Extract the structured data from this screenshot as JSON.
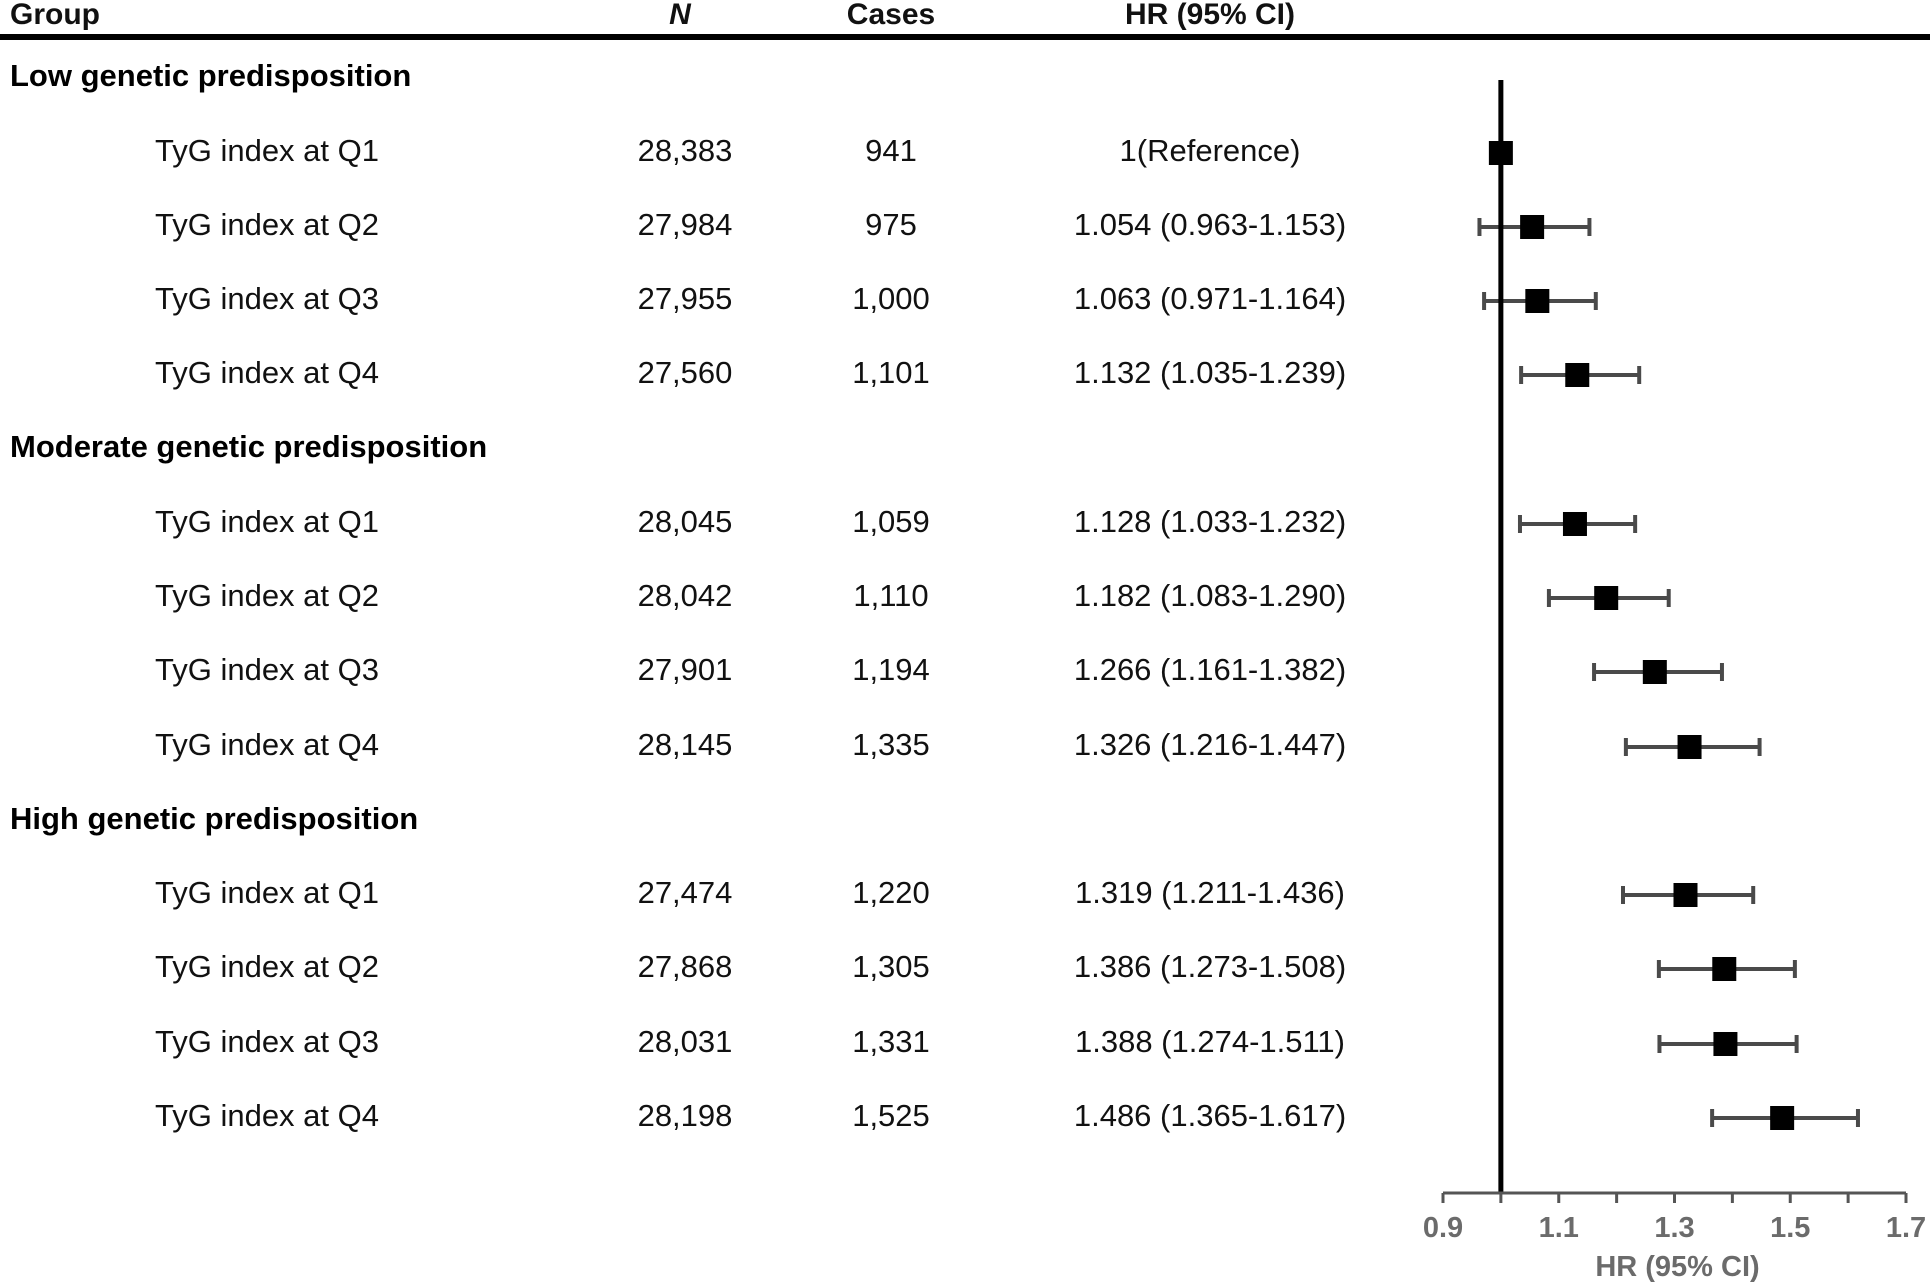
{
  "headers": {
    "group": "Group",
    "n": "N",
    "cases": "Cases",
    "hr": "HR (95% CI)"
  },
  "groups": [
    {
      "title": "Low genetic predisposition",
      "rows": [
        {
          "label": "TyG index at Q1",
          "n": "28,383",
          "cases": "941",
          "hr_text": "1(Reference)"
        },
        {
          "label": "TyG index at Q2",
          "n": "27,984",
          "cases": "975",
          "hr_text": "1.054 (0.963-1.153)"
        },
        {
          "label": "TyG index at Q3",
          "n": "27,955",
          "cases": "1,000",
          "hr_text": "1.063 (0.971-1.164)"
        },
        {
          "label": "TyG index at Q4",
          "n": "27,560",
          "cases": "1,101",
          "hr_text": "1.132 (1.035-1.239)"
        }
      ]
    },
    {
      "title": "Moderate genetic predisposition",
      "rows": [
        {
          "label": "TyG index at Q1",
          "n": "28,045",
          "cases": "1,059",
          "hr_text": "1.128 (1.033-1.232)"
        },
        {
          "label": "TyG index at Q2",
          "n": "28,042",
          "cases": "1,110",
          "hr_text": "1.182 (1.083-1.290)"
        },
        {
          "label": "TyG index at Q3",
          "n": "27,901",
          "cases": "1,194",
          "hr_text": "1.266 (1.161-1.382)"
        },
        {
          "label": "TyG index at Q4",
          "n": "28,145",
          "cases": "1,335",
          "hr_text": "1.326 (1.216-1.447)"
        }
      ]
    },
    {
      "title": "High genetic predisposition",
      "rows": [
        {
          "label": "TyG index at Q1",
          "n": "27,474",
          "cases": "1,220",
          "hr_text": "1.319 (1.211-1.436)"
        },
        {
          "label": "TyG index at Q2",
          "n": "27,868",
          "cases": "1,305",
          "hr_text": "1.386 (1.273-1.508)"
        },
        {
          "label": "TyG index at Q3",
          "n": "28,031",
          "cases": "1,331",
          "hr_text": "1.388 (1.274-1.511)"
        },
        {
          "label": "TyG index at Q4",
          "n": "28,198",
          "cases": "1,525",
          "hr_text": "1.486 (1.365-1.617)"
        }
      ]
    }
  ],
  "chart_data": {
    "type": "forest",
    "xlabel": "HR (95% CI)",
    "xlim": [
      0.9,
      1.7
    ],
    "xticks": [
      0.9,
      1.1,
      1.3,
      1.5,
      1.7
    ],
    "tick_labels": [
      "0.9",
      "1.1",
      "1.3",
      "1.5",
      "1.7"
    ],
    "reference_line": 1.0,
    "series": [
      {
        "name": "Low genetic predisposition",
        "points": [
          {
            "label": "TyG index at Q1",
            "hr": 1.0,
            "lower": 1.0,
            "upper": 1.0
          },
          {
            "label": "TyG index at Q2",
            "hr": 1.054,
            "lower": 0.963,
            "upper": 1.153
          },
          {
            "label": "TyG index at Q3",
            "hr": 1.063,
            "lower": 0.971,
            "upper": 1.164
          },
          {
            "label": "TyG index at Q4",
            "hr": 1.132,
            "lower": 1.035,
            "upper": 1.239
          }
        ]
      },
      {
        "name": "Moderate genetic predisposition",
        "points": [
          {
            "label": "TyG index at Q1",
            "hr": 1.128,
            "lower": 1.033,
            "upper": 1.232
          },
          {
            "label": "TyG index at Q2",
            "hr": 1.182,
            "lower": 1.083,
            "upper": 1.29
          },
          {
            "label": "TyG index at Q3",
            "hr": 1.266,
            "lower": 1.161,
            "upper": 1.382
          },
          {
            "label": "TyG index at Q4",
            "hr": 1.326,
            "lower": 1.216,
            "upper": 1.447
          }
        ]
      },
      {
        "name": "High genetic predisposition",
        "points": [
          {
            "label": "TyG index at Q1",
            "hr": 1.319,
            "lower": 1.211,
            "upper": 1.436
          },
          {
            "label": "TyG index at Q2",
            "hr": 1.386,
            "lower": 1.273,
            "upper": 1.508
          },
          {
            "label": "TyG index at Q3",
            "hr": 1.388,
            "lower": 1.274,
            "upper": 1.511
          },
          {
            "label": "TyG index at Q4",
            "hr": 1.486,
            "lower": 1.365,
            "upper": 1.617
          }
        ]
      }
    ]
  },
  "colors": {
    "marker": "#000000",
    "ci_line": "#4a4a4a",
    "axis_text": "#6b6b6b"
  }
}
